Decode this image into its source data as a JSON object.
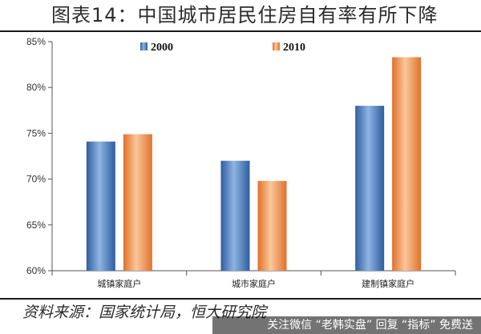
{
  "header": {
    "title": "图表14：中国城市居民住房自有率有所下降"
  },
  "footer": {
    "source": "资料来源：国家统计局，恒大研究院",
    "watermark": "关注微信 “老韩实盘” 回复 “指标” 免费送"
  },
  "colors": {
    "series_2000": "#4a7fc1",
    "series_2010": "#f08a3c"
  },
  "chart_data": {
    "type": "bar",
    "categories": [
      "城镇家庭户",
      "城市家庭户",
      "建制镇家庭户"
    ],
    "series": [
      {
        "name": "2000",
        "values": [
          74.1,
          72.0,
          78.0
        ]
      },
      {
        "name": "2010",
        "values": [
          74.9,
          69.8,
          83.3
        ]
      }
    ],
    "ylim": [
      60,
      85
    ],
    "yticks": [
      "60%",
      "65%",
      "70%",
      "75%",
      "80%",
      "85%"
    ],
    "ytick_values": [
      60,
      65,
      70,
      75,
      80,
      85
    ],
    "legend_position": "top-center",
    "grid": false
  }
}
